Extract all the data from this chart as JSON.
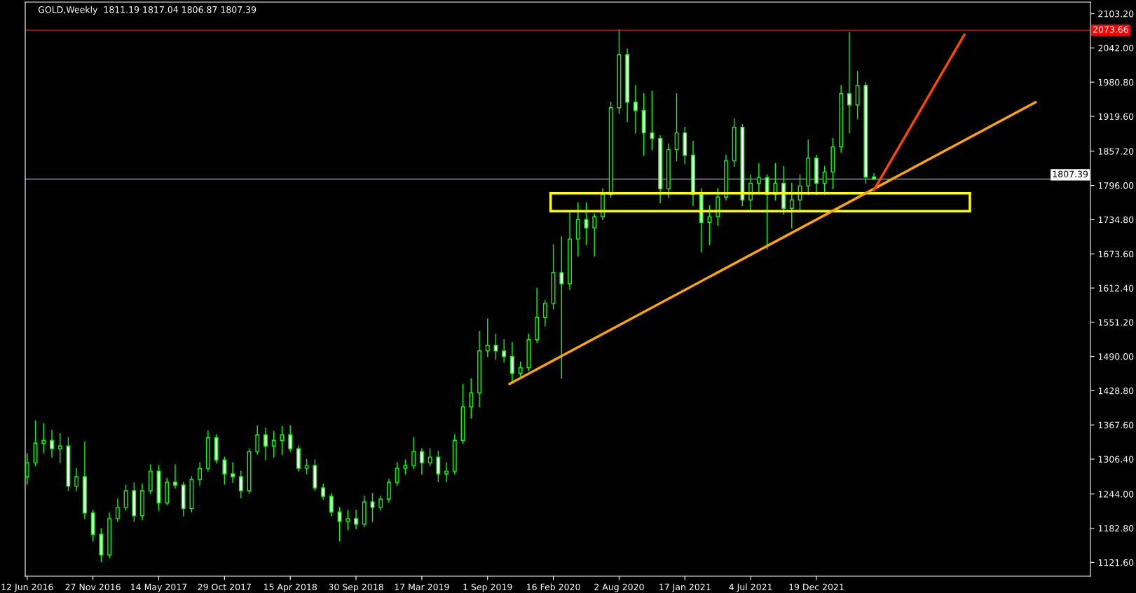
{
  "chart_data": {
    "type": "candlestick",
    "title": "GOLD,Weekly  1811.19 1817.04 1806.87 1807.39",
    "color": "#00ff00",
    "x": [
      "2016-06-12",
      "2016-07-03",
      "2016-07-24",
      "2016-08-14",
      "2016-09-04",
      "2016-09-25",
      "2016-10-16",
      "2016-11-06",
      "2016-11-27",
      "2016-12-18",
      "2017-01-08",
      "2017-01-29",
      "2017-02-19",
      "2017-03-12",
      "2017-04-02",
      "2017-04-23",
      "2017-05-14",
      "2017-06-04",
      "2017-06-25",
      "2017-07-16",
      "2017-08-06",
      "2017-08-27",
      "2017-09-17",
      "2017-10-08",
      "2017-10-29",
      "2017-11-19",
      "2017-12-10",
      "2017-12-31",
      "2018-01-21",
      "2018-02-11",
      "2018-03-04",
      "2018-03-25",
      "2018-04-15",
      "2018-05-06",
      "2018-05-27",
      "2018-06-17",
      "2018-07-08",
      "2018-07-29",
      "2018-08-19",
      "2018-09-09",
      "2018-09-30",
      "2018-10-21",
      "2018-11-11",
      "2018-12-02",
      "2018-12-23",
      "2019-01-13",
      "2019-02-03",
      "2019-02-24",
      "2019-03-17",
      "2019-04-07",
      "2019-04-28",
      "2019-05-19",
      "2019-06-09",
      "2019-06-30",
      "2019-07-21",
      "2019-08-11",
      "2019-09-01",
      "2019-09-22",
      "2019-10-13",
      "2019-11-03",
      "2019-11-24",
      "2019-12-15",
      "2020-01-05",
      "2020-01-26",
      "2020-02-16",
      "2020-03-08",
      "2020-03-29",
      "2020-04-19",
      "2020-05-10",
      "2020-05-31",
      "2020-06-21",
      "2020-07-12",
      "2020-08-02",
      "2020-08-23",
      "2020-09-13",
      "2020-10-04",
      "2020-10-25",
      "2020-11-15",
      "2020-12-06",
      "2020-12-27",
      "2021-01-17",
      "2021-02-07",
      "2021-02-28",
      "2021-03-21",
      "2021-04-11",
      "2021-05-02",
      "2021-05-23",
      "2021-06-13",
      "2021-07-04",
      "2021-07-25",
      "2021-08-15",
      "2021-09-05",
      "2021-09-26",
      "2021-10-17",
      "2021-11-07",
      "2021-11-28",
      "2021-12-19",
      "2022-01-09",
      "2022-01-30",
      "2022-02-20",
      "2022-03-13",
      "2022-04-03",
      "2022-04-24",
      "2022-05-15"
    ],
    "ohlc": [
      [
        1275,
        1316,
        1262,
        1300
      ],
      [
        1300,
        1375,
        1295,
        1335
      ],
      [
        1335,
        1370,
        1318,
        1340
      ],
      [
        1340,
        1358,
        1310,
        1325
      ],
      [
        1325,
        1352,
        1300,
        1330
      ],
      [
        1330,
        1345,
        1250,
        1258
      ],
      [
        1258,
        1290,
        1250,
        1275
      ],
      [
        1275,
        1337,
        1200,
        1210
      ],
      [
        1210,
        1215,
        1160,
        1172
      ],
      [
        1172,
        1182,
        1123,
        1135
      ],
      [
        1135,
        1210,
        1130,
        1200
      ],
      [
        1200,
        1235,
        1195,
        1220
      ],
      [
        1220,
        1260,
        1215,
        1250
      ],
      [
        1250,
        1264,
        1195,
        1205
      ],
      [
        1205,
        1262,
        1198,
        1250
      ],
      [
        1250,
        1296,
        1245,
        1285
      ],
      [
        1285,
        1295,
        1215,
        1228
      ],
      [
        1228,
        1272,
        1225,
        1265
      ],
      [
        1265,
        1296,
        1255,
        1260
      ],
      [
        1260,
        1265,
        1205,
        1218
      ],
      [
        1218,
        1275,
        1212,
        1270
      ],
      [
        1270,
        1300,
        1260,
        1290
      ],
      [
        1290,
        1357,
        1285,
        1345
      ],
      [
        1345,
        1350,
        1300,
        1305
      ],
      [
        1305,
        1310,
        1262,
        1280
      ],
      [
        1280,
        1300,
        1265,
        1275
      ],
      [
        1275,
        1285,
        1237,
        1250
      ],
      [
        1250,
        1325,
        1245,
        1320
      ],
      [
        1320,
        1366,
        1315,
        1350
      ],
      [
        1350,
        1362,
        1305,
        1330
      ],
      [
        1330,
        1356,
        1310,
        1340
      ],
      [
        1340,
        1365,
        1315,
        1350
      ],
      [
        1350,
        1366,
        1320,
        1325
      ],
      [
        1325,
        1330,
        1285,
        1290
      ],
      [
        1290,
        1306,
        1280,
        1295
      ],
      [
        1295,
        1305,
        1250,
        1255
      ],
      [
        1255,
        1262,
        1235,
        1240
      ],
      [
        1240,
        1245,
        1205,
        1212
      ],
      [
        1212,
        1220,
        1160,
        1195
      ],
      [
        1195,
        1215,
        1180,
        1200
      ],
      [
        1200,
        1215,
        1182,
        1190
      ],
      [
        1190,
        1240,
        1185,
        1230
      ],
      [
        1230,
        1245,
        1195,
        1220
      ],
      [
        1220,
        1240,
        1215,
        1235
      ],
      [
        1235,
        1270,
        1230,
        1265
      ],
      [
        1265,
        1300,
        1260,
        1290
      ],
      [
        1290,
        1305,
        1280,
        1295
      ],
      [
        1295,
        1345,
        1290,
        1320
      ],
      [
        1320,
        1325,
        1280,
        1300
      ],
      [
        1300,
        1325,
        1295,
        1310
      ],
      [
        1310,
        1320,
        1266,
        1280
      ],
      [
        1280,
        1300,
        1266,
        1285
      ],
      [
        1285,
        1350,
        1280,
        1340
      ],
      [
        1340,
        1440,
        1335,
        1400
      ],
      [
        1400,
        1450,
        1380,
        1425
      ],
      [
        1425,
        1535,
        1400,
        1500
      ],
      [
        1500,
        1557,
        1490,
        1510
      ],
      [
        1510,
        1530,
        1485,
        1500
      ],
      [
        1500,
        1520,
        1480,
        1490
      ],
      [
        1490,
        1515,
        1445,
        1460
      ],
      [
        1460,
        1480,
        1455,
        1470
      ],
      [
        1470,
        1530,
        1465,
        1520
      ],
      [
        1520,
        1612,
        1515,
        1560
      ],
      [
        1560,
        1590,
        1545,
        1585
      ],
      [
        1585,
        1690,
        1575,
        1640
      ],
      [
        1640,
        1704,
        1451,
        1620
      ],
      [
        1620,
        1748,
        1610,
        1700
      ],
      [
        1700,
        1765,
        1670,
        1735
      ],
      [
        1735,
        1765,
        1690,
        1720
      ],
      [
        1720,
        1745,
        1670,
        1740
      ],
      [
        1740,
        1790,
        1735,
        1780
      ],
      [
        1780,
        1945,
        1775,
        1935
      ],
      [
        1935,
        2073.66,
        1925,
        2030
      ],
      [
        2030,
        2040,
        1910,
        1945
      ],
      [
        1945,
        1975,
        1890,
        1930
      ],
      [
        1930,
        1960,
        1850,
        1890
      ],
      [
        1890,
        1965,
        1860,
        1880
      ],
      [
        1880,
        1885,
        1765,
        1790
      ],
      [
        1790,
        1870,
        1775,
        1860
      ],
      [
        1860,
        1960,
        1840,
        1890
      ],
      [
        1890,
        1900,
        1835,
        1850
      ],
      [
        1850,
        1875,
        1760,
        1780
      ],
      [
        1780,
        1790,
        1677,
        1730
      ],
      [
        1730,
        1760,
        1690,
        1740
      ],
      [
        1740,
        1790,
        1725,
        1775
      ],
      [
        1775,
        1850,
        1770,
        1840
      ],
      [
        1840,
        1915,
        1830,
        1900
      ],
      [
        1900,
        1905,
        1760,
        1770
      ],
      [
        1770,
        1815,
        1750,
        1800
      ],
      [
        1800,
        1835,
        1785,
        1810
      ],
      [
        1810,
        1815,
        1683,
        1780
      ],
      [
        1780,
        1835,
        1770,
        1800
      ],
      [
        1800,
        1830,
        1745,
        1755
      ],
      [
        1755,
        1800,
        1720,
        1770
      ],
      [
        1770,
        1815,
        1750,
        1795
      ],
      [
        1795,
        1877,
        1780,
        1845
      ],
      [
        1845,
        1850,
        1780,
        1800
      ],
      [
        1800,
        1830,
        1780,
        1820
      ],
      [
        1820,
        1880,
        1790,
        1865
      ],
      [
        1865,
        1975,
        1855,
        1960
      ],
      [
        1960,
        2070,
        1890,
        1940
      ],
      [
        1940,
        2000,
        1915,
        1975
      ],
      [
        1975,
        1980,
        1800,
        1811
      ],
      [
        1811.19,
        1817.04,
        1806.87,
        1807.39
      ]
    ],
    "series": [
      {
        "type": "line",
        "color": "#ffff00",
        "x": [
          "2020-02-09",
          "2023-01-15"
        ],
        "values": [
          1782,
          1782
        ]
      },
      {
        "type": "line",
        "color": "#ffff00",
        "x": [
          "2020-02-09",
          "2023-01-15"
        ],
        "values": [
          1750,
          1750
        ]
      },
      {
        "type": "line",
        "color": "#ffa500",
        "x": [
          "2019-10-27",
          "2023-07-02"
        ],
        "values": [
          1441,
          1945
        ]
      },
      {
        "type": "line",
        "color": "#ff4500",
        "x": [
          "2022-05-15",
          "2023-01-01"
        ],
        "values": [
          1788,
          2066
        ]
      }
    ],
    "ref_lines": [
      {
        "axis": "y",
        "value": 2073.66,
        "label": "2073.66",
        "color": "#ff0000"
      },
      {
        "axis": "y",
        "value": 1807.39,
        "label": "1807.39",
        "color": "#8a99a6"
      }
    ],
    "xlim": [
      "2016-06-07",
      "2023-11-19"
    ],
    "xticks": [
      {
        "value": "2016-06-12",
        "label": "12 Jun 2016"
      },
      {
        "value": "2016-11-27",
        "label": "27 Nov 2016"
      },
      {
        "value": "2017-05-14",
        "label": "14 May 2017"
      },
      {
        "value": "2017-10-29",
        "label": "29 Oct 2017"
      },
      {
        "value": "2018-04-15",
        "label": "15 Apr 2018"
      },
      {
        "value": "2018-09-30",
        "label": "30 Sep 2018"
      },
      {
        "value": "2019-03-17",
        "label": "17 Mar 2019"
      },
      {
        "value": "2019-09-01",
        "label": "1 Sep 2019"
      },
      {
        "value": "2020-02-16",
        "label": "16 Feb 2020"
      },
      {
        "value": "2020-08-02",
        "label": "2 Aug 2020"
      },
      {
        "value": "2021-01-17",
        "label": "17 Jan 2021"
      },
      {
        "value": "2021-07-04",
        "label": "4 Jul 2021"
      },
      {
        "value": "2021-12-19",
        "label": "19 Dec 2021"
      }
    ],
    "ylim": [
      1097,
      2124
    ],
    "yticks": [
      {
        "value": 1121.6,
        "label": "1121.60"
      },
      {
        "value": 1182.8,
        "label": "1182.80"
      },
      {
        "value": 1244,
        "label": "1244.00"
      },
      {
        "value": 1306.4,
        "label": "1306.40"
      },
      {
        "value": 1367.6,
        "label": "1367.60"
      },
      {
        "value": 1428.8,
        "label": "1428.80"
      },
      {
        "value": 1490,
        "label": "1490.00"
      },
      {
        "value": 1551.2,
        "label": "1551.20"
      },
      {
        "value": 1612.4,
        "label": "1612.40"
      },
      {
        "value": 1673.6,
        "label": "1673.60"
      },
      {
        "value": 1734.8,
        "label": "1734.80"
      },
      {
        "value": 1796,
        "label": "1796.00"
      },
      {
        "value": 1857.2,
        "label": "1857.20"
      },
      {
        "value": 1919.6,
        "label": "1919.60"
      },
      {
        "value": 1980.8,
        "label": "1980.80"
      },
      {
        "value": 2042,
        "label": "2042.00"
      },
      {
        "value": 2103.2,
        "label": "2103.20"
      }
    ],
    "grid": false,
    "legend": false
  }
}
